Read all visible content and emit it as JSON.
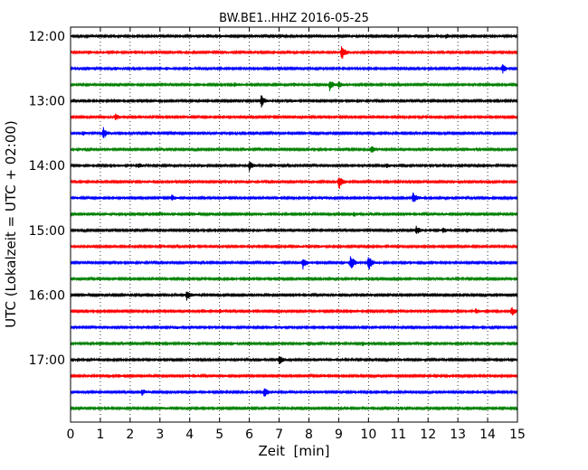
{
  "chart_data": {
    "type": "line",
    "title": "BW.BE1..HHZ 2016-05-25",
    "xlabel": "Zeit  [min]",
    "ylabel": "UTC (Lokalzeit = UTC + 02:00)",
    "xlim": [
      0,
      15
    ],
    "x_ticks": [
      "0",
      "1",
      "2",
      "3",
      "4",
      "5",
      "6",
      "7",
      "8",
      "9",
      "10",
      "11",
      "12",
      "13",
      "14",
      "15"
    ],
    "y_ticks": [
      {
        "label": "12:00",
        "row": 0
      },
      {
        "label": "13:00",
        "row": 4
      },
      {
        "label": "14:00",
        "row": 8
      },
      {
        "label": "15:00",
        "row": 12
      },
      {
        "label": "16:00",
        "row": 16
      },
      {
        "label": "17:00",
        "row": 20
      }
    ],
    "grid": "vertical-dotted",
    "row_interval_min": 15,
    "colors": [
      "#000000",
      "#ff0000",
      "#0000ff",
      "#008000"
    ],
    "rows": [
      {
        "start": "12:00",
        "events": [
          [
            4.6,
            0.18
          ],
          [
            5.0,
            0.14
          ],
          [
            12.6,
            0.22
          ]
        ]
      },
      {
        "start": "12:15",
        "events": [
          [
            9.1,
            0.95
          ],
          [
            0.6,
            0.15
          ]
        ]
      },
      {
        "start": "12:30",
        "events": [
          [
            14.5,
            0.6
          ],
          [
            1.5,
            0.2
          ],
          [
            0.6,
            0.1
          ],
          [
            3.2,
            0.12
          ],
          [
            4.0,
            0.1
          ]
        ]
      },
      {
        "start": "12:45",
        "events": [
          [
            8.7,
            0.6
          ],
          [
            9.0,
            0.3
          ],
          [
            7.5,
            0.15
          ],
          [
            5.5,
            0.2
          ]
        ]
      },
      {
        "start": "13:00",
        "events": [
          [
            6.4,
            0.7
          ],
          [
            1.6,
            0.12
          ],
          [
            7.5,
            0.1
          ]
        ]
      },
      {
        "start": "13:15",
        "events": [
          [
            1.5,
            0.35
          ],
          [
            2.3,
            0.2
          ],
          [
            1.1,
            0.15
          ]
        ]
      },
      {
        "start": "13:30",
        "events": [
          [
            1.1,
            0.7
          ],
          [
            0.4,
            0.2
          ],
          [
            2.8,
            0.1
          ]
        ]
      },
      {
        "start": "13:45",
        "events": [
          [
            10.1,
            0.4
          ],
          [
            8.7,
            0.12
          ],
          [
            13.3,
            0.18
          ],
          [
            2.7,
            0.1
          ],
          [
            5.8,
            0.12
          ]
        ]
      },
      {
        "start": "14:00",
        "events": [
          [
            6.0,
            0.55
          ],
          [
            2.3,
            0.25
          ],
          [
            10.6,
            0.25
          ],
          [
            4.4,
            0.15
          ],
          [
            1.6,
            0.1
          ]
        ]
      },
      {
        "start": "14:15",
        "events": [
          [
            9.0,
            0.95
          ],
          [
            8.1,
            0.12
          ],
          [
            2.5,
            0.1
          ]
        ]
      },
      {
        "start": "14:30",
        "events": [
          [
            11.5,
            0.8
          ],
          [
            3.4,
            0.35
          ],
          [
            8.4,
            0.12
          ],
          [
            14.0,
            0.1
          ]
        ]
      },
      {
        "start": "14:45",
        "events": [
          [
            9.5,
            0.25
          ],
          [
            3.2,
            0.15
          ],
          [
            6.3,
            0.1
          ]
        ]
      },
      {
        "start": "15:00",
        "events": [
          [
            11.6,
            0.55
          ],
          [
            12.5,
            0.3
          ],
          [
            13.3,
            0.2
          ],
          [
            6.3,
            0.12
          ]
        ]
      },
      {
        "start": "15:15",
        "events": [
          [
            4.1,
            0.15
          ],
          [
            7.6,
            0.1
          ],
          [
            8.3,
            0.12
          ]
        ]
      },
      {
        "start": "15:30",
        "events": [
          [
            9.4,
            1.0
          ],
          [
            10.0,
            0.95
          ],
          [
            7.8,
            0.7
          ],
          [
            11.2,
            0.15
          ],
          [
            6.8,
            0.15
          ]
        ]
      },
      {
        "start": "15:45",
        "events": [
          [
            5.4,
            0.15
          ],
          [
            9.7,
            0.12
          ],
          [
            11.5,
            0.12
          ]
        ]
      },
      {
        "start": "16:00",
        "events": [
          [
            3.9,
            0.65
          ],
          [
            1.8,
            0.12
          ],
          [
            10.0,
            0.12
          ]
        ]
      },
      {
        "start": "16:15",
        "events": [
          [
            14.8,
            0.55
          ],
          [
            13.6,
            0.25
          ],
          [
            5.0,
            0.2
          ],
          [
            9.4,
            0.15
          ]
        ]
      },
      {
        "start": "16:30",
        "events": [
          [
            3.5,
            0.1
          ],
          [
            7.0,
            0.08
          ]
        ]
      },
      {
        "start": "16:45",
        "events": [
          [
            9.8,
            0.25
          ],
          [
            4.1,
            0.1
          ],
          [
            8.5,
            0.1
          ]
        ]
      },
      {
        "start": "17:00",
        "events": [
          [
            7.0,
            0.6
          ],
          [
            6.3,
            0.15
          ],
          [
            5.2,
            0.1
          ],
          [
            8.3,
            0.12
          ]
        ]
      },
      {
        "start": "17:15",
        "events": [
          [
            1.6,
            0.15
          ],
          [
            8.5,
            0.12
          ],
          [
            12.7,
            0.1
          ]
        ]
      },
      {
        "start": "17:30",
        "events": [
          [
            6.5,
            0.6
          ],
          [
            2.4,
            0.35
          ],
          [
            8.4,
            0.12
          ],
          [
            13.5,
            0.12
          ]
        ]
      },
      {
        "start": "17:45",
        "events": [
          [
            11.0,
            0.1
          ],
          [
            3.0,
            0.08
          ]
        ]
      }
    ]
  }
}
